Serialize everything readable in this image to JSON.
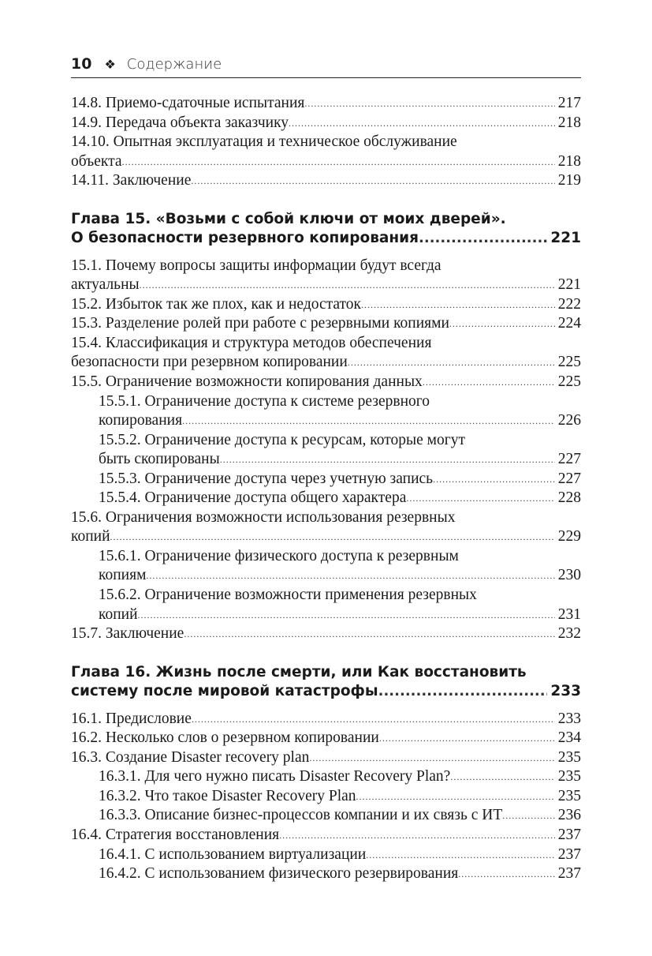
{
  "header": {
    "page_number": "10",
    "ornament": "❖",
    "title": "Содержание"
  },
  "sections": [
    {
      "type": "entries",
      "entries": [
        {
          "lines": [
            "14.8. Приемо-сдаточные испытания"
          ],
          "page": "217"
        },
        {
          "lines": [
            "14.9. Передача объекта заказчику"
          ],
          "page": "218"
        },
        {
          "lines": [
            "14.10. Опытная эксплуатация и техническое обслуживание",
            "объекта"
          ],
          "page": "218"
        },
        {
          "lines": [
            "14.11. Заключение"
          ],
          "page": "219"
        }
      ]
    },
    {
      "type": "chapter",
      "lines": [
        "Глава 15. «Возьми с собой ключи от моих дверей».",
        "О безопасности резервного копирования"
      ],
      "page": "221"
    },
    {
      "type": "entries",
      "entries": [
        {
          "lines": [
            "15.1. Почему вопросы защиты информации будут всегда",
            "актуальны"
          ],
          "page": "221"
        },
        {
          "lines": [
            "15.2. Избыток так же плох, как и недостаток"
          ],
          "page": "222"
        },
        {
          "lines": [
            "15.3. Разделение ролей при работе с резервными копиями"
          ],
          "page": "224"
        },
        {
          "lines": [
            "15.4. Классификация и структура методов обеспечения",
            "безопасности при резервном копировании"
          ],
          "page": "225"
        },
        {
          "lines": [
            "15.5. Ограничение возможности копирования данных"
          ],
          "page": "225"
        },
        {
          "lines": [
            "15.5.1. Ограничение доступа к системе резервного",
            "копирования"
          ],
          "page": "226",
          "indent": true
        },
        {
          "lines": [
            "15.5.2. Ограничение доступа к ресурсам, которые могут",
            "быть скопированы"
          ],
          "page": "227",
          "indent": true
        },
        {
          "lines": [
            "15.5.3. Ограничение доступа через учетную запись"
          ],
          "page": "227",
          "indent": true
        },
        {
          "lines": [
            "15.5.4. Ограничение доступа общего характера"
          ],
          "page": "228",
          "indent": true
        },
        {
          "lines": [
            "15.6. Ограничения возможности использования резервных",
            "копий"
          ],
          "page": "229"
        },
        {
          "lines": [
            "15.6.1. Ограничение физического доступа к резервным",
            "копиям"
          ],
          "page": "230",
          "indent": true
        },
        {
          "lines": [
            "15.6.2. Ограничение возможности применения резервных",
            "копий"
          ],
          "page": "231",
          "indent": true
        },
        {
          "lines": [
            "15.7. Заключение"
          ],
          "page": "232"
        }
      ]
    },
    {
      "type": "chapter",
      "lines": [
        "Глава 16. Жизнь после смерти, или Как восстановить",
        "систему после мировой катастрофы"
      ],
      "page": "233"
    },
    {
      "type": "entries",
      "entries": [
        {
          "lines": [
            "16.1. Предисловие"
          ],
          "page": "233"
        },
        {
          "lines": [
            "16.2. Несколько слов о резервном копировании"
          ],
          "page": "234"
        },
        {
          "lines": [
            "16.3. Создание Disaster recovery plan"
          ],
          "page": "235"
        },
        {
          "lines": [
            "16.3.1. Для чего нужно писать Disaster Recovery Plan?"
          ],
          "page": "235",
          "indent": true
        },
        {
          "lines": [
            "16.3.2. Что такое Disaster Recovery Plan"
          ],
          "page": "235",
          "indent": true
        },
        {
          "lines": [
            "16.3.3. Описание бизнес-процессов компании и их связь с ИТ"
          ],
          "page": "236",
          "indent": true
        },
        {
          "lines": [
            "16.4. Стратегия восстановления"
          ],
          "page": "237"
        },
        {
          "lines": [
            "16.4.1. С использованием виртуализации"
          ],
          "page": "237",
          "indent": true
        },
        {
          "lines": [
            "16.4.2. С использованием физического резервирования"
          ],
          "page": "237",
          "indent": true
        }
      ]
    }
  ]
}
